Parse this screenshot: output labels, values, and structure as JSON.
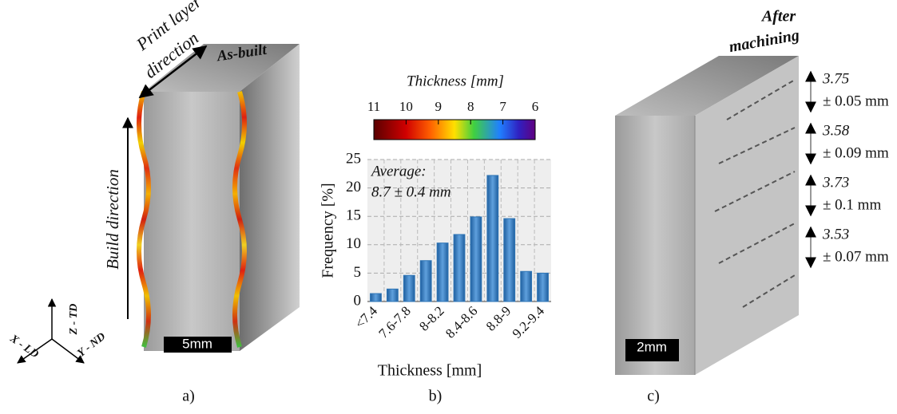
{
  "panel_a": {
    "print_layer": "Print layer",
    "direction": "direction",
    "as_built": "As-built",
    "build_direction": "Build direction",
    "scale": "5mm",
    "axis_z": "Z - TD",
    "axis_x": "X - LD",
    "axis_y": "Y - ND",
    "label": "a)"
  },
  "colorbar": {
    "title": "Thickness [mm]",
    "ticks": [
      11,
      10,
      9,
      8,
      7,
      6
    ]
  },
  "chart_data": {
    "type": "bar",
    "categories": [
      "<7.4",
      null,
      "7.6-7.8",
      null,
      "8-8.2",
      null,
      "8.4-8.6",
      null,
      "8.8-9",
      null,
      "9.2-9.4"
    ],
    "values": [
      1.4,
      2.2,
      4.6,
      7.2,
      10.3,
      11.8,
      14.9,
      22.2,
      14.6,
      5.3,
      5.0
    ],
    "color": "#2e75b6",
    "ylim": [
      0,
      25
    ],
    "yticks": [
      0,
      5,
      10,
      15,
      20,
      25
    ],
    "grid": true,
    "y_label": "Frequency [%]",
    "x_label": "Thickness [mm]",
    "annotation": [
      "Average:",
      "8.7 ± 0.4 mm"
    ]
  },
  "panel_b": {
    "label": "b)"
  },
  "panel_c": {
    "after": "After",
    "machining": "machining",
    "scale": "2mm",
    "label": "c)",
    "layers": [
      [
        "3.75",
        "± 0.05 mm"
      ],
      [
        "3.58",
        "± 0.09 mm"
      ],
      [
        "3.73",
        "± 0.1 mm"
      ],
      [
        "3.53",
        "± 0.07 mm"
      ]
    ]
  }
}
